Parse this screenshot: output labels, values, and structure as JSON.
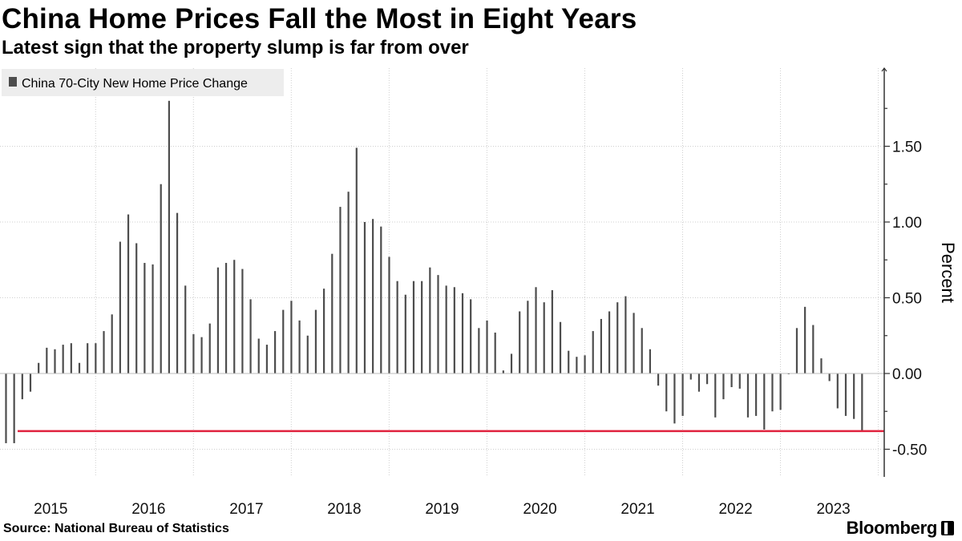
{
  "header": {
    "title": "China Home Prices Fall the Most in Eight Years",
    "subtitle": "Latest sign that the property slump is far from over"
  },
  "footer": {
    "source": "Source: National Bureau of Statistics",
    "brand": "Bloomberg",
    "brand_badge": "▌"
  },
  "colors": {
    "bar": "#4d4d4d",
    "reference_line": "#e0233e",
    "grid": "#cfcfcf",
    "legend_bg": "#ededed"
  },
  "chart_data": {
    "type": "bar",
    "title": "China Home Prices Fall the Most in Eight Years",
    "subtitle": "Latest sign that the property slump is far from over",
    "series": [
      {
        "name": "China 70-City New Home Price Change",
        "start": "2015-01",
        "frequency": "monthly",
        "values": [
          -0.46,
          -0.46,
          -0.17,
          -0.12,
          0.07,
          0.17,
          0.16,
          0.19,
          0.2,
          0.07,
          0.2,
          0.2,
          0.28,
          0.39,
          0.87,
          1.05,
          0.86,
          0.73,
          0.72,
          1.25,
          1.8,
          1.06,
          0.58,
          0.26,
          0.24,
          0.33,
          0.7,
          0.73,
          0.75,
          0.69,
          0.49,
          0.23,
          0.19,
          0.28,
          0.42,
          0.48,
          0.35,
          0.25,
          0.42,
          0.56,
          0.79,
          1.1,
          1.2,
          1.49,
          1.0,
          1.02,
          0.97,
          0.77,
          0.61,
          0.52,
          0.61,
          0.61,
          0.7,
          0.65,
          0.58,
          0.57,
          0.53,
          0.49,
          0.3,
          0.35,
          0.27,
          0.02,
          0.13,
          0.41,
          0.48,
          0.57,
          0.47,
          0.55,
          0.34,
          0.15,
          0.11,
          0.12,
          0.28,
          0.36,
          0.41,
          0.47,
          0.51,
          0.4,
          0.3,
          0.16,
          -0.08,
          -0.25,
          -0.33,
          -0.28,
          -0.04,
          -0.12,
          -0.07,
          -0.29,
          -0.17,
          -0.09,
          -0.1,
          -0.29,
          -0.28,
          -0.37,
          -0.25,
          -0.24,
          0.0,
          0.3,
          0.44,
          0.32,
          0.1,
          -0.05,
          -0.23,
          -0.28,
          -0.3,
          -0.38
        ]
      }
    ],
    "legend": [
      "China 70-City New Home Price Change"
    ],
    "legend_position": "top-left",
    "ylabel": "Percent",
    "xlabel": "",
    "ylim": [
      -0.68,
      1.99
    ],
    "yticks": [
      1.5,
      1.0,
      0.5,
      0.0,
      -0.5
    ],
    "ytick_labels": [
      "1.50",
      "1.00",
      "0.50",
      "0.00",
      "-0.50"
    ],
    "xticks": [
      "2015",
      "2016",
      "2017",
      "2018",
      "2019",
      "2020",
      "2021",
      "2022",
      "2023"
    ],
    "reference_line": {
      "value": -0.38,
      "label": ""
    },
    "grid": true,
    "y_axis_side": "right"
  }
}
